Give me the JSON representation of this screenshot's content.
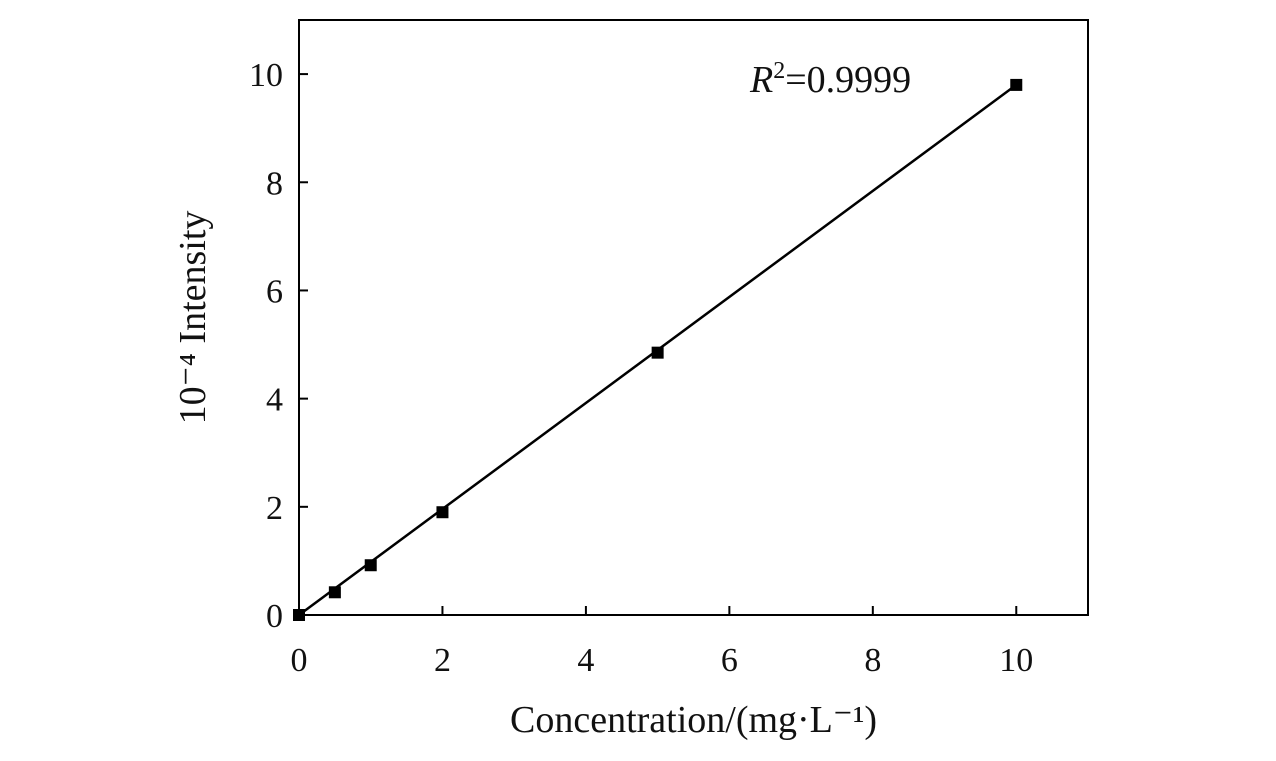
{
  "chart_data": {
    "type": "scatter",
    "title": "",
    "xlabel": "Concentration/(mg·L⁻¹)",
    "ylabel": "10⁻⁴ Intensity",
    "xlim": [
      0,
      11
    ],
    "ylim": [
      0,
      11
    ],
    "xticks": [
      0,
      2,
      4,
      6,
      8,
      10
    ],
    "yticks": [
      0,
      2,
      4,
      6,
      8,
      10
    ],
    "grid": false,
    "series": [
      {
        "points": [
          {
            "x": 0,
            "y": 0
          },
          {
            "x": 0.5,
            "y": 0.42
          },
          {
            "x": 1,
            "y": 0.92
          },
          {
            "x": 2,
            "y": 1.9
          },
          {
            "x": 5,
            "y": 4.85
          },
          {
            "x": 10,
            "y": 9.8
          }
        ],
        "marker": "square",
        "color": "#000000"
      }
    ],
    "fit_line": {
      "x_range": [
        0,
        10
      ],
      "slope": 0.98,
      "intercept": 0,
      "color": "#000000"
    },
    "annotation": {
      "symbol": "R",
      "superscript": "2",
      "text": "=0.9999"
    }
  }
}
